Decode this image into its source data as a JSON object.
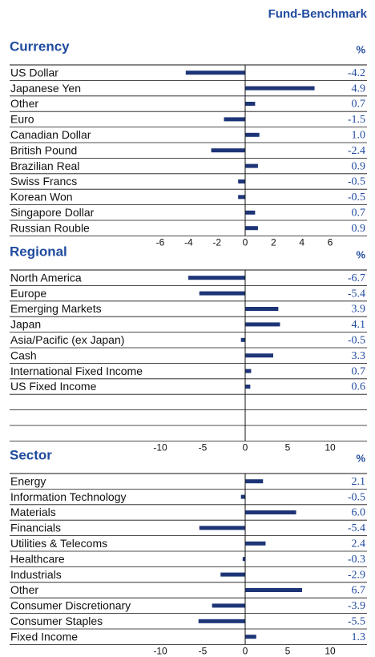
{
  "header": "Fund-Benchmark",
  "chart_data": [
    {
      "type": "bar",
      "title": "Currency",
      "unit": "%",
      "color": "#1d3577",
      "categories": [
        "US Dollar",
        "Japanese Yen",
        "Other",
        "Euro",
        "Canadian Dollar",
        "British Pound",
        "Brazilian Real",
        "Swiss Francs",
        "Korean Won",
        "Singapore Dollar",
        "Russian Rouble"
      ],
      "values": [
        -4.2,
        4.9,
        0.7,
        -1.5,
        1.0,
        -2.4,
        0.9,
        -0.5,
        -0.5,
        0.7,
        0.9
      ],
      "value_labels": [
        "-4.2",
        "4.9",
        "0.7",
        "-1.5",
        "1.0",
        "-2.4",
        "0.9",
        "-0.5",
        "-0.5",
        "0.7",
        "0.9"
      ],
      "xlim": [
        -6,
        6
      ],
      "xticks": [
        -6,
        -4,
        -2,
        0,
        2,
        4,
        6
      ]
    },
    {
      "type": "bar",
      "title": "Regional",
      "unit": "%",
      "color": "#1d3577",
      "categories": [
        "North America",
        "Europe",
        "Emerging Markets",
        "Japan",
        "Asia/Pacific (ex Japan)",
        "Cash",
        "International Fixed Income",
        "US Fixed Income",
        null,
        null,
        null
      ],
      "values": [
        -6.7,
        -5.4,
        3.9,
        4.1,
        -0.5,
        3.3,
        0.7,
        0.6,
        null,
        null,
        null
      ],
      "value_labels": [
        "-6.7",
        "-5.4",
        "3.9",
        "4.1",
        "-0.5",
        "3.3",
        "0.7",
        "0.6",
        null,
        null,
        null
      ],
      "xlim": [
        -10,
        10
      ],
      "xticks": [
        -10,
        -5,
        0,
        5,
        10
      ]
    },
    {
      "type": "bar",
      "title": "Sector",
      "unit": "%",
      "color": "#1d3577",
      "categories": [
        "Energy",
        "Information Technology",
        "Materials",
        "Financials",
        "Utilities & Telecoms",
        "Healthcare",
        "Industrials",
        "Other",
        "Consumer Discretionary",
        "Consumer Staples",
        "Fixed Income"
      ],
      "values": [
        2.1,
        -0.5,
        6.0,
        -5.4,
        2.4,
        -0.3,
        -2.9,
        6.7,
        -3.9,
        -5.5,
        1.3
      ],
      "value_labels": [
        "2.1",
        "-0.5",
        "6.0",
        "-5.4",
        "2.4",
        "-0.3",
        "-2.9",
        "6.7",
        "-3.9",
        "-5.5",
        "1.3"
      ],
      "xlim": [
        -10,
        10
      ],
      "xticks": [
        -10,
        -5,
        0,
        5,
        10
      ]
    }
  ]
}
